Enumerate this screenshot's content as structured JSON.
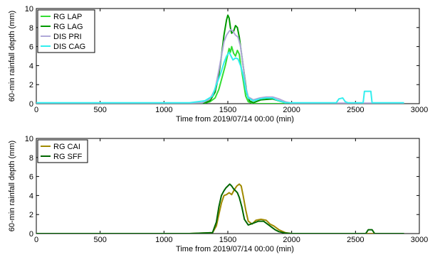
{
  "chart_data": [
    {
      "type": "line",
      "xlabel": "Time from 2019/07/14 00:00 (min)",
      "ylabel": "60-min rainfall depth (mm)",
      "xlim": [
        0,
        3000
      ],
      "ylim": [
        0,
        10
      ],
      "xticks": [
        0,
        500,
        1000,
        1500,
        2000,
        2500,
        3000
      ],
      "yticks": [
        0,
        2,
        4,
        6,
        8,
        10
      ],
      "grid": false,
      "legend_position": "top-left",
      "series": [
        {
          "name": "RG LAP",
          "color": "#33dd33",
          "points": [
            [
              0,
              0
            ],
            [
              1150,
              0
            ],
            [
              1300,
              0
            ],
            [
              1360,
              0.2
            ],
            [
              1400,
              0.6
            ],
            [
              1430,
              1.5
            ],
            [
              1460,
              3.0
            ],
            [
              1480,
              4.0
            ],
            [
              1500,
              5.2
            ],
            [
              1510,
              5.8
            ],
            [
              1520,
              5.4
            ],
            [
              1530,
              6.0
            ],
            [
              1545,
              5.3
            ],
            [
              1560,
              5.0
            ],
            [
              1575,
              5.6
            ],
            [
              1590,
              5.2
            ],
            [
              1600,
              4.2
            ],
            [
              1620,
              2.5
            ],
            [
              1640,
              0.8
            ],
            [
              1660,
              0.2
            ],
            [
              1700,
              0
            ],
            [
              2000,
              0
            ],
            [
              2880,
              0
            ]
          ]
        },
        {
          "name": "RG LAG",
          "color": "#009900",
          "points": [
            [
              0,
              0
            ],
            [
              1150,
              0
            ],
            [
              1300,
              0
            ],
            [
              1360,
              0.3
            ],
            [
              1400,
              1.2
            ],
            [
              1430,
              3.0
            ],
            [
              1450,
              5.0
            ],
            [
              1470,
              7.2
            ],
            [
              1490,
              8.8
            ],
            [
              1500,
              9.3
            ],
            [
              1510,
              9.0
            ],
            [
              1520,
              8.0
            ],
            [
              1530,
              7.4
            ],
            [
              1545,
              7.6
            ],
            [
              1560,
              8.2
            ],
            [
              1575,
              8.0
            ],
            [
              1590,
              7.0
            ],
            [
              1610,
              5.0
            ],
            [
              1630,
              3.0
            ],
            [
              1650,
              1.0
            ],
            [
              1670,
              0.3
            ],
            [
              1700,
              0.1
            ],
            [
              1760,
              0.4
            ],
            [
              1850,
              0.5
            ],
            [
              1900,
              0.3
            ],
            [
              1950,
              0.1
            ],
            [
              2000,
              0
            ],
            [
              2880,
              0
            ]
          ]
        },
        {
          "name": "DIS PRI",
          "color": "#b0a8d8",
          "points": [
            [
              0,
              0.05
            ],
            [
              1150,
              0.05
            ],
            [
              1300,
              0.1
            ],
            [
              1360,
              0.5
            ],
            [
              1400,
              1.5
            ],
            [
              1430,
              3.5
            ],
            [
              1450,
              5.0
            ],
            [
              1470,
              6.5
            ],
            [
              1490,
              7.2
            ],
            [
              1510,
              7.6
            ],
            [
              1525,
              7.8
            ],
            [
              1540,
              7.6
            ],
            [
              1560,
              7.2
            ],
            [
              1580,
              7.0
            ],
            [
              1600,
              6.0
            ],
            [
              1620,
              4.0
            ],
            [
              1640,
              1.8
            ],
            [
              1660,
              0.7
            ],
            [
              1700,
              0.4
            ],
            [
              1750,
              0.6
            ],
            [
              1800,
              0.7
            ],
            [
              1850,
              0.7
            ],
            [
              1900,
              0.5
            ],
            [
              1950,
              0.2
            ],
            [
              2000,
              0.05
            ],
            [
              2880,
              0.05
            ]
          ]
        },
        {
          "name": "DIS CAG",
          "color": "#33eeee",
          "points": [
            [
              0,
              0.1
            ],
            [
              1200,
              0.1
            ],
            [
              1320,
              0.3
            ],
            [
              1380,
              0.8
            ],
            [
              1410,
              2.0
            ],
            [
              1440,
              3.0
            ],
            [
              1470,
              4.3
            ],
            [
              1490,
              5.0
            ],
            [
              1510,
              5.4
            ],
            [
              1525,
              5.0
            ],
            [
              1540,
              4.6
            ],
            [
              1560,
              4.8
            ],
            [
              1580,
              4.7
            ],
            [
              1600,
              4.0
            ],
            [
              1620,
              3.0
            ],
            [
              1640,
              1.5
            ],
            [
              1660,
              0.6
            ],
            [
              1700,
              0.3
            ],
            [
              1750,
              0.5
            ],
            [
              1800,
              0.6
            ],
            [
              1850,
              0.6
            ],
            [
              1880,
              0.4
            ],
            [
              1950,
              0.1
            ],
            [
              2350,
              0.1
            ],
            [
              2370,
              0.5
            ],
            [
              2400,
              0.6
            ],
            [
              2420,
              0.2
            ],
            [
              2440,
              0.1
            ],
            [
              2560,
              0.1
            ],
            [
              2570,
              1.3
            ],
            [
              2620,
              1.3
            ],
            [
              2630,
              0.1
            ],
            [
              2880,
              0.1
            ]
          ]
        }
      ]
    },
    {
      "type": "line",
      "xlabel": "Time from 2019/07/14 00:00 (min)",
      "ylabel": "60-min rainfall depth (mm)",
      "xlim": [
        0,
        3000
      ],
      "ylim": [
        0,
        10
      ],
      "xticks": [
        0,
        500,
        1000,
        1500,
        2000,
        2500,
        3000
      ],
      "yticks": [
        0,
        2,
        4,
        6,
        8,
        10
      ],
      "grid": false,
      "legend_position": "top-left",
      "series": [
        {
          "name": "RG CAI",
          "color": "#a08a00",
          "points": [
            [
              0,
              0
            ],
            [
              1200,
              0
            ],
            [
              1380,
              0.1
            ],
            [
              1410,
              0.8
            ],
            [
              1430,
              2.0
            ],
            [
              1450,
              3.2
            ],
            [
              1470,
              4.0
            ],
            [
              1490,
              4.1
            ],
            [
              1510,
              4.3
            ],
            [
              1530,
              4.1
            ],
            [
              1550,
              4.6
            ],
            [
              1570,
              5.0
            ],
            [
              1590,
              5.2
            ],
            [
              1605,
              5.0
            ],
            [
              1620,
              4.0
            ],
            [
              1640,
              2.5
            ],
            [
              1660,
              1.3
            ],
            [
              1690,
              1.0
            ],
            [
              1720,
              1.4
            ],
            [
              1760,
              1.5
            ],
            [
              1800,
              1.4
            ],
            [
              1830,
              1.0
            ],
            [
              1860,
              0.8
            ],
            [
              1900,
              0.4
            ],
            [
              1950,
              0.1
            ],
            [
              2000,
              0
            ],
            [
              2880,
              0
            ]
          ]
        },
        {
          "name": "RG SFF",
          "color": "#006600",
          "points": [
            [
              0,
              0
            ],
            [
              1200,
              0
            ],
            [
              1380,
              0.1
            ],
            [
              1410,
              1.2
            ],
            [
              1430,
              2.8
            ],
            [
              1450,
              4.0
            ],
            [
              1470,
              4.5
            ],
            [
              1485,
              4.8
            ],
            [
              1500,
              5.0
            ],
            [
              1515,
              5.2
            ],
            [
              1530,
              5.0
            ],
            [
              1545,
              4.7
            ],
            [
              1560,
              4.5
            ],
            [
              1575,
              4.3
            ],
            [
              1590,
              3.8
            ],
            [
              1610,
              2.8
            ],
            [
              1630,
              1.5
            ],
            [
              1660,
              0.9
            ],
            [
              1700,
              1.1
            ],
            [
              1740,
              1.3
            ],
            [
              1780,
              1.3
            ],
            [
              1810,
              1.0
            ],
            [
              1840,
              0.7
            ],
            [
              1870,
              0.4
            ],
            [
              1900,
              0.2
            ],
            [
              1950,
              0.05
            ],
            [
              2000,
              0
            ],
            [
              2580,
              0
            ],
            [
              2600,
              0.4
            ],
            [
              2630,
              0.4
            ],
            [
              2650,
              0
            ],
            [
              2880,
              0
            ]
          ]
        }
      ]
    }
  ]
}
